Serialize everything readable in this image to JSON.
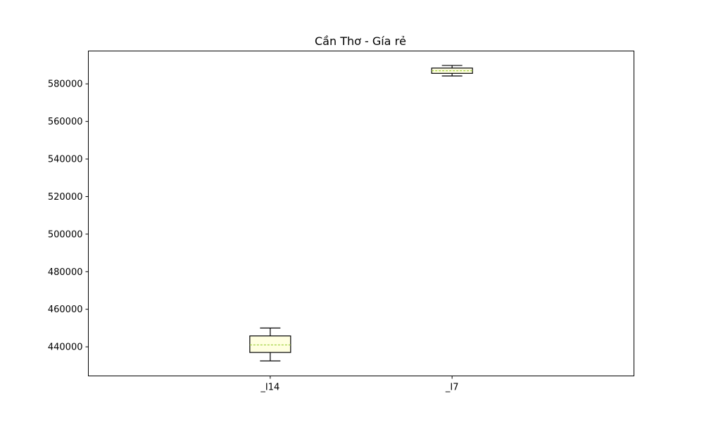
{
  "chart_data": {
    "type": "box",
    "title": "Cần Thơ - Gía rẻ",
    "xlabel": "",
    "ylabel": "",
    "categories": [
      "_I14",
      "_I7"
    ],
    "boxes": [
      {
        "name": "_I14",
        "whisker_low": 432500,
        "q1": 437000,
        "median": 441000,
        "q3": 445800,
        "whisker_high": 450000
      },
      {
        "name": "_I7",
        "whisker_low": 584200,
        "q1": 585600,
        "median": 587000,
        "q3": 588400,
        "whisker_high": 589800
      }
    ],
    "ylim": [
      424500,
      597500
    ],
    "yticks": [
      440000,
      460000,
      480000,
      500000,
      520000,
      540000,
      560000,
      580000
    ],
    "ytick_labels": [
      "440000",
      "460000",
      "480000",
      "500000",
      "520000",
      "540000",
      "560000",
      "580000"
    ],
    "grid": false,
    "colors": {
      "box_fill": "#ffffe0",
      "box_edge": "#000000",
      "median": "#9acd32"
    }
  }
}
